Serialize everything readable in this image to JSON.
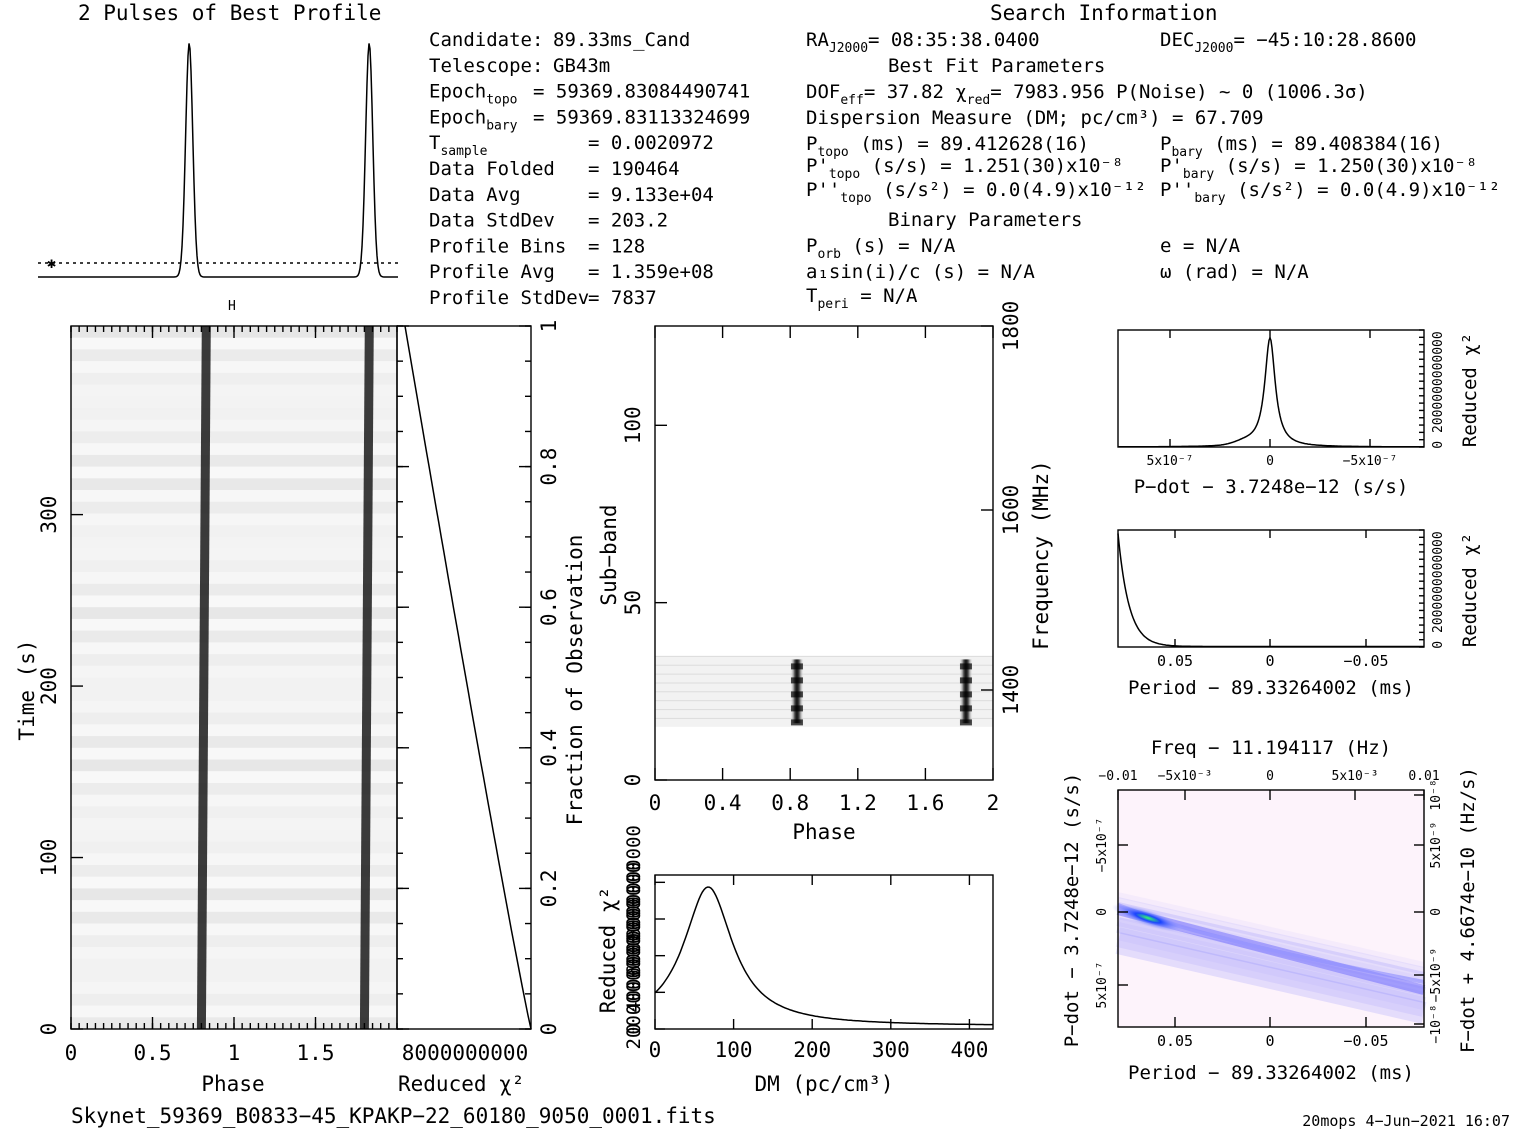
{
  "profile_title": "2 Pulses of Best Profile",
  "search_title": "Search Information",
  "info_col1": [
    {
      "k": "Candidate:",
      "v": "89.33ms_Cand"
    },
    {
      "k": "Telescope:",
      "v": "GB43m"
    },
    {
      "k": "Epoch",
      "ks": "topo",
      "v": "= 59369.83084490741"
    },
    {
      "k": "Epoch",
      "ks": "bary",
      "v": "= 59369.83113324699"
    },
    {
      "k": "T",
      "ks": "sample",
      "v": "=   0.0020972"
    },
    {
      "k": "Data Folded",
      "v": "=   190464"
    },
    {
      "k": "Data Avg",
      "v": "=   9.133e+04"
    },
    {
      "k": "Data StdDev",
      "v": "=   203.2"
    },
    {
      "k": "Profile Bins",
      "v": "=   128"
    },
    {
      "k": "Profile Avg",
      "v": "=   1.359e+08"
    },
    {
      "k": "Profile StdDev",
      "v": "=   7837"
    }
  ],
  "ra_label": "RA",
  "ra_sub": "J2000",
  "ra_val": "= 08:35:38.0400",
  "dec_label": "DEC",
  "dec_sub": "J2000",
  "dec_val": "= −45:10:28.8600",
  "best_fit_header": "Best Fit Parameters",
  "dof_line": "DOF",
  "dof_sub": "eff",
  "dof_val": "= 37.82  χ",
  "chi_sub": "red",
  "chi_val": "= 7983.956  P(Noise) ~ 0   (1006.3σ)",
  "dm_line": "Dispersion Measure (DM; pc/cm³) = 67.709",
  "ptopo_line": "(ms) =  89.412628(16)",
  "pbary_line": "(ms) =  89.408384(16)",
  "pdtopo_line": "(s/s) =  1.251(30)x10⁻⁸",
  "pdbary_line": "(s/s) =  1.250(30)x10⁻⁸",
  "pddtopo_line": "(s/s²) = 0.0(4.9)x10⁻¹²",
  "pddbary_line": "(s/s²) = 0.0(4.9)x10⁻¹²",
  "binary_header": "Binary Parameters",
  "porb_line": "(s) = N/A",
  "e_line": "e = N/A",
  "a1_line": "a₁sin(i)/c (s) = N/A",
  "omega_line": "ω (rad) = N/A",
  "tperi_line": "= N/A",
  "footer_file": "Skynet_59369_B0833−45_KPAKP−22_60180_9050_0001.fits",
  "footer_user": "20mops  4−Jun−2021 16:07",
  "labels": {
    "time_axis": "Time (s)",
    "phase": "Phase",
    "reduced_chi2": "Reduced χ²",
    "fraction": "Fraction of Observation",
    "subband": "Sub−band",
    "frequency": "Frequency (MHz)",
    "dm": "DM (pc/cm³)",
    "pdot": "P−dot − 3.7248e−12 (s/s)",
    "period": "Period − 89.33264002 (ms)",
    "freq_top": "Freq − 11.194117 (Hz)",
    "pdot_left": "P−dot − 3.7248e−12 (s/s)",
    "fdot_right": "F−dot + 4.6674e−10 (Hz/s)"
  },
  "chart_data": [
    {
      "type": "line",
      "name": "profile",
      "title": "2 Pulses of Best Profile",
      "x_phase": [
        0,
        2
      ],
      "peaks": [
        0.84,
        1.84
      ],
      "baseline": "dotted"
    },
    {
      "type": "heatmap",
      "name": "time-phase",
      "xlabel": "Phase",
      "ylabel": "Time (s)",
      "xlim": [
        0,
        2
      ],
      "ylim": [
        0,
        410
      ],
      "x_ticks": [
        "0",
        "0.5",
        "1",
        "1.5"
      ],
      "y_ticks": [
        "0",
        "100",
        "200",
        "300"
      ],
      "pulse_phase_start": [
        0.8,
        1.8
      ],
      "pulse_phase_end": [
        0.83,
        1.83
      ]
    },
    {
      "type": "line",
      "name": "reduced-chi2-vs-time",
      "xlabel": "Reduced χ²",
      "ylabel": "Fraction of Observation",
      "ylim": [
        0,
        1
      ],
      "y_ticks": [
        "0",
        "0.2",
        "0.4",
        "0.6",
        "0.8",
        "1"
      ],
      "x_tick_text": "8000000000"
    },
    {
      "type": "heatmap",
      "name": "subband-phase",
      "xlabel": "Phase",
      "ylabel": "Sub−band",
      "xlim": [
        0,
        2
      ],
      "ylim": [
        0,
        128
      ],
      "x_ticks": [
        "0",
        "0.4",
        "0.8",
        "1.2",
        "1.6",
        "2"
      ],
      "y_ticks": [
        "0",
        "50",
        "100"
      ],
      "freq_ticks": [
        "1400",
        "1600",
        "1800"
      ],
      "signal_subbands": [
        15,
        35
      ],
      "pulses": [
        0.84,
        1.84
      ]
    },
    {
      "type": "line",
      "name": "dm-curve",
      "xlabel": "DM (pc/cm³)",
      "ylabel": "Reduced χ²",
      "xlim": [
        0,
        430
      ],
      "x_ticks": [
        "0",
        "100",
        "200",
        "300",
        "400"
      ],
      "y_tick_text": [
        "0",
        "2000000000",
        "4000000000",
        "6000000000",
        "8000000000"
      ],
      "peak_dm": 67.709
    },
    {
      "type": "line",
      "name": "pdot-curve",
      "xlabel": "P−dot − 3.7248e−12 (s/s)",
      "ylabel": "Reduced χ²",
      "x_ticks": [
        "5x10⁻⁷",
        "0",
        "−5x10⁻⁷"
      ],
      "y_tick_text": "0 2000000000000"
    },
    {
      "type": "line",
      "name": "period-curve",
      "xlabel": "Period − 89.33264002 (ms)",
      "ylabel": "Reduced χ²",
      "x_ticks": [
        "0.05",
        "0",
        "−0.05"
      ],
      "y_tick_text": "0 2000000000000"
    },
    {
      "type": "heatmap",
      "name": "period-pdot",
      "title": "Freq − 11.194117 (Hz)",
      "xlabel": "Period − 89.33264002 (ms)",
      "ylabel": "P−dot − 3.7248e−12 (s/s)",
      "x_ticks": [
        "0.05",
        "0",
        "−0.05"
      ],
      "top_ticks": [
        "−0.01",
        "−5x10⁻³",
        "0",
        "5x10⁻³",
        "0.01"
      ],
      "left_ticks": [
        "−5x10⁻⁷",
        "0",
        "5x10⁻⁷"
      ],
      "right_ticks": [
        "10⁻⁸",
        "5x10⁻⁹",
        "0",
        "−5x10⁻⁹",
        "−10⁻⁸"
      ]
    }
  ]
}
